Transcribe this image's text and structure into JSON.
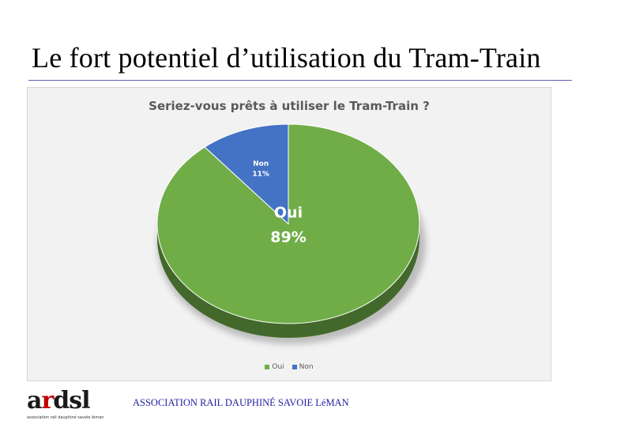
{
  "slide": {
    "title": "Le fort potentiel d’utilisation du Tram-Train"
  },
  "chart_data": {
    "type": "pie",
    "title": "Seriez-vous prêts à utiliser le Tram-Train ?",
    "categories": [
      "Oui",
      "Non"
    ],
    "values": [
      89,
      11
    ],
    "unit": "%",
    "data_labels": [
      {
        "name": "Oui",
        "value": "89%"
      },
      {
        "name": "Non",
        "value": "11%"
      }
    ],
    "colors": [
      "#70ad47",
      "#4472c4"
    ],
    "style": "3d-tilted",
    "legend": "bottom"
  },
  "footer": {
    "logo": {
      "letters": [
        "a",
        "r",
        "d",
        "s",
        "l"
      ],
      "letter_colors": [
        "#1a1a1a",
        "#c00000",
        "#1a1a1a",
        "#1a1a1a",
        "#1a1a1a"
      ],
      "subtitle": "association rail dauphiné savoie léman"
    },
    "organization": "ASSOCIATION RAIL DAUPHINÉ SAVOIE LéMAN"
  }
}
